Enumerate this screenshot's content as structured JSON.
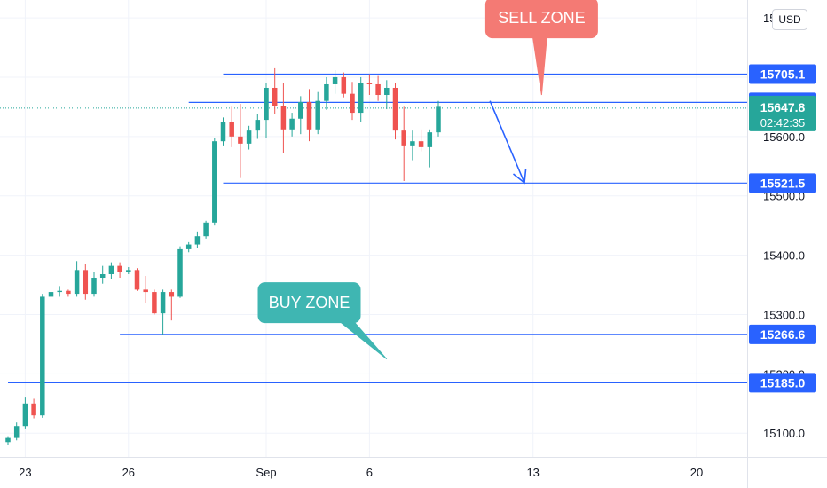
{
  "chart_data": {
    "type": "candlestick",
    "y_axis": {
      "range": [
        15060,
        15830
      ],
      "tick_values": [
        15100,
        15200,
        15300,
        15400,
        15500,
        15600,
        15800
      ],
      "tick_labels": [
        "15100.0",
        "15200.0",
        "15300.0",
        "15400.0",
        "15500.0",
        "15600.0",
        "15800.0"
      ]
    },
    "x_axis": {
      "tick_labels": [
        {
          "label": "23",
          "index": 2
        },
        {
          "label": "26",
          "index": 14
        },
        {
          "label": "Sep",
          "index": 30
        },
        {
          "label": "6",
          "index": 42
        },
        {
          "label": "13",
          "index": 61
        },
        {
          "label": "20",
          "index": 80
        }
      ]
    },
    "currency": "USD",
    "current_price": {
      "value": 15647.8,
      "label": "15647.8",
      "countdown": "02:42:35",
      "color": "#26a69a"
    },
    "levels": [
      {
        "value": 15705.1,
        "label": "15705.1",
        "start_index": 25
      },
      {
        "value": 15657.5,
        "label": "15657.5",
        "start_index": 21
      },
      {
        "value": 15521.5,
        "label": "15521.5",
        "start_index": 25
      },
      {
        "value": 15266.6,
        "label": "15266.6",
        "start_index": 13
      },
      {
        "value": 15185.0,
        "label": "15185.0",
        "start_index": 0
      }
    ],
    "annotations": [
      {
        "text": "SELL ZONE",
        "kind": "callout",
        "color": "#f47a74",
        "anchor_index": 62,
        "anchor_value": 15800,
        "pointer_index": 62,
        "pointer_value": 15670
      },
      {
        "text": "BUY ZONE",
        "kind": "callout",
        "color": "#3fb6b2",
        "anchor_index": 35,
        "anchor_value": 15320,
        "pointer_index": 44,
        "pointer_value": 15225
      }
    ],
    "projection_arrow": {
      "from_index": 56,
      "from_value": 15660,
      "to_index": 60,
      "to_value": 15522,
      "color": "#2962ff"
    },
    "colors": {
      "up": "#26a69a",
      "down": "#ef5350",
      "level": "#2962ff"
    },
    "candles": [
      [
        15085,
        15095,
        15080,
        15092
      ],
      [
        15092,
        15118,
        15088,
        15112
      ],
      [
        15112,
        15160,
        15108,
        15150
      ],
      [
        15150,
        15158,
        15125,
        15130
      ],
      [
        15130,
        15335,
        15126,
        15330
      ],
      [
        15330,
        15345,
        15322,
        15338
      ],
      [
        15338,
        15348,
        15330,
        15340
      ],
      [
        15340,
        15342,
        15330,
        15335
      ],
      [
        15335,
        15390,
        15330,
        15375
      ],
      [
        15375,
        15385,
        15325,
        15335
      ],
      [
        15335,
        15372,
        15330,
        15362
      ],
      [
        15362,
        15382,
        15352,
        15368
      ],
      [
        15368,
        15388,
        15360,
        15382
      ],
      [
        15382,
        15388,
        15362,
        15372
      ],
      [
        15372,
        15380,
        15368,
        15375
      ],
      [
        15375,
        15378,
        15340,
        15342
      ],
      [
        15342,
        15365,
        15320,
        15338
      ],
      [
        15338,
        15342,
        15300,
        15302
      ],
      [
        15302,
        15342,
        15265,
        15338
      ],
      [
        15338,
        15342,
        15290,
        15330
      ],
      [
        15330,
        15415,
        15328,
        15410
      ],
      [
        15410,
        15422,
        15405,
        15418
      ],
      [
        15418,
        15440,
        15412,
        15432
      ],
      [
        15432,
        15458,
        15428,
        15455
      ],
      [
        15455,
        15598,
        15450,
        15592
      ],
      [
        15592,
        15632,
        15585,
        15625
      ],
      [
        15625,
        15650,
        15582,
        15600
      ],
      [
        15600,
        15655,
        15530,
        15588
      ],
      [
        15588,
        15618,
        15578,
        15610
      ],
      [
        15610,
        15638,
        15596,
        15628
      ],
      [
        15628,
        15690,
        15598,
        15682
      ],
      [
        15682,
        15715,
        15638,
        15652
      ],
      [
        15652,
        15690,
        15572,
        15612
      ],
      [
        15612,
        15640,
        15600,
        15630
      ],
      [
        15630,
        15668,
        15604,
        15658
      ],
      [
        15658,
        15680,
        15592,
        15612
      ],
      [
        15612,
        15675,
        15604,
        15660
      ],
      [
        15660,
        15700,
        15645,
        15688
      ],
      [
        15688,
        15712,
        15672,
        15700
      ],
      [
        15700,
        15708,
        15666,
        15672
      ],
      [
        15672,
        15692,
        15628,
        15640
      ],
      [
        15640,
        15700,
        15625,
        15690
      ],
      [
        15690,
        15705,
        15670,
        15688
      ],
      [
        15688,
        15702,
        15660,
        15670
      ],
      [
        15670,
        15695,
        15646,
        15682
      ],
      [
        15682,
        15690,
        15595,
        15610
      ],
      [
        15610,
        15650,
        15525,
        15585
      ],
      [
        15585,
        15610,
        15560,
        15592
      ],
      [
        15592,
        15612,
        15575,
        15582
      ],
      [
        15582,
        15612,
        15548,
        15607
      ],
      [
        15607,
        15660,
        15600,
        15650
      ]
    ]
  }
}
